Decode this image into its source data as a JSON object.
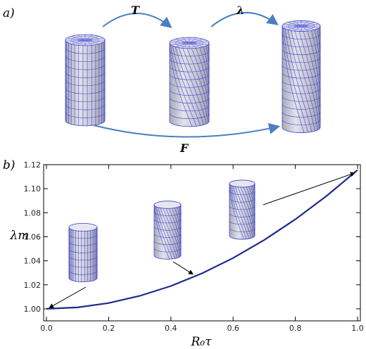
{
  "figure": {
    "panel_a_label": "a)",
    "panel_b_label": "b)",
    "op_T": "T",
    "op_lambda": "λ",
    "op_F": "F",
    "colors": {
      "arrow": "#4a7fc0",
      "curve": "#1d2a8c",
      "mesh": "#3b3fd0",
      "cylinder": "#c9c9d3"
    },
    "icons": [
      "cylinder-undeformed",
      "cylinder-twisted",
      "cylinder-twisted-stretched"
    ]
  },
  "chart_data": {
    "type": "line",
    "xlabel": "R₀τ",
    "ylabel": "λm",
    "xlim": [
      0,
      1
    ],
    "ylim": [
      0.99,
      1.12
    ],
    "x_ticks": [
      "0.0",
      "0.2",
      "0.4",
      "0.6",
      "0.8",
      "1.0"
    ],
    "y_ticks": [
      "1.00",
      "1.02",
      "1.04",
      "1.06",
      "1.08",
      "1.10",
      "1.12"
    ],
    "grid": false,
    "series": [
      {
        "x": [
          0,
          0.1,
          0.2,
          0.3,
          0.4,
          0.5,
          0.6,
          0.7,
          0.8,
          0.9,
          1.0
        ],
        "y": [
          1.0,
          1.0012,
          1.0048,
          1.0108,
          1.019,
          1.0295,
          1.0423,
          1.0573,
          1.0745,
          1.0939,
          1.1155
        ]
      }
    ],
    "insets": [
      {
        "name": "undeformed",
        "x": 0.01,
        "y": 1.001
      },
      {
        "name": "twisted",
        "x": 0.47,
        "y": 1.029
      },
      {
        "name": "twisted-stretched",
        "x": 0.99,
        "y": 1.113
      }
    ]
  }
}
